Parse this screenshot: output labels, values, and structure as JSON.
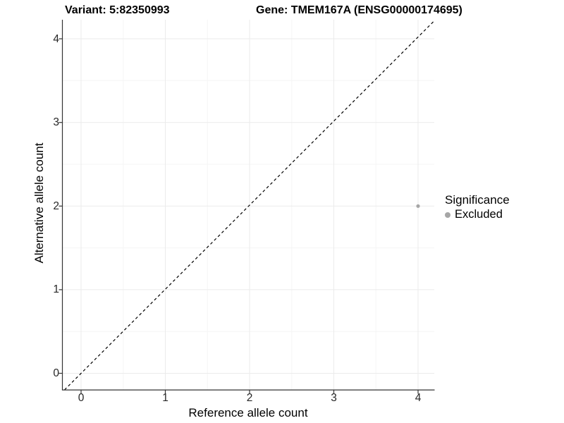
{
  "titles": {
    "left": "Variant: 5:82350993",
    "right": "Gene: TMEM167A (ENSG00000174695)"
  },
  "axes": {
    "x_label": "Reference allele count",
    "y_label": "Alternative allele count"
  },
  "legend": {
    "title": "Significance",
    "items": [
      {
        "label": "Excluded",
        "color": "#a6a6a6"
      }
    ]
  },
  "chart_data": {
    "type": "scatter",
    "title": "Variant: 5:82350993   Gene: TMEM167A (ENSG00000174695)",
    "xlabel": "Reference allele count",
    "ylabel": "Alternative allele count",
    "x_ticks": [
      "0",
      "1",
      "2",
      "3",
      "4"
    ],
    "y_ticks": [
      "0",
      "1",
      "2",
      "3",
      "4"
    ],
    "xlim": [
      -0.22,
      4.19
    ],
    "ylim": [
      -0.2,
      4.23
    ],
    "grid": {
      "major": true,
      "minor": true,
      "major_color": "#ebebeb",
      "minor_color": "#f5f5f5"
    },
    "series": [
      {
        "name": "Excluded",
        "color": "#a6a6a6",
        "points": [
          {
            "x": 4,
            "y": 2
          }
        ]
      }
    ],
    "reference_line": {
      "kind": "identity y=x",
      "style": "dashed",
      "color": "#000000"
    },
    "legend_title": "Significance",
    "legend_position": "right",
    "background": "#ffffff",
    "axis_color": "#333333"
  }
}
